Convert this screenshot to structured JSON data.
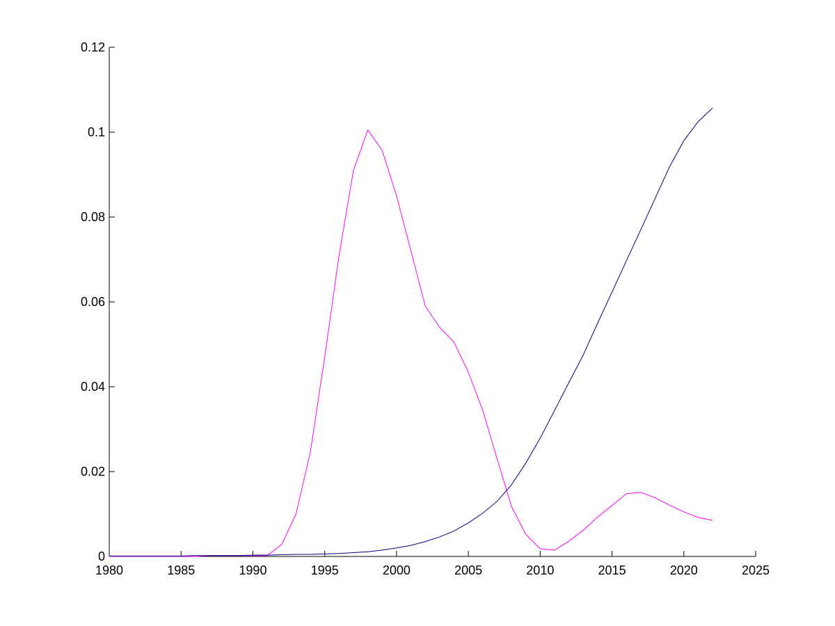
{
  "chart_data": {
    "type": "line",
    "x": [
      1980,
      1981,
      1982,
      1983,
      1984,
      1985,
      1986,
      1987,
      1988,
      1989,
      1990,
      1991,
      1992,
      1993,
      1994,
      1995,
      1996,
      1997,
      1998,
      1999,
      2000,
      2001,
      2002,
      2003,
      2004,
      2005,
      2006,
      2007,
      2008,
      2009,
      2010,
      2011,
      2012,
      2013,
      2014,
      2015,
      2016,
      2017,
      2018,
      2019,
      2020,
      2021,
      2022
    ],
    "series": [
      {
        "color": "#ff00ff",
        "values": [
          0,
          0,
          0,
          0,
          0,
          0,
          0,
          0.0002,
          0.0002,
          0.0002,
          0.0002,
          0.0002,
          0.0028,
          0.01,
          0.0246,
          0.047,
          0.071,
          0.091,
          0.1005,
          0.0957,
          0.085,
          0.072,
          0.059,
          0.054,
          0.0505,
          0.0434,
          0.0344,
          0.023,
          0.0118,
          0.0052,
          0.0018,
          0.0015,
          0.0036,
          0.0062,
          0.0093,
          0.012,
          0.0148,
          0.0151,
          0.0138,
          0.0121,
          0.0105,
          0.0092,
          0.0085
        ]
      },
      {
        "color": "#000080",
        "values": [
          0.0001,
          0.0001,
          0.0001,
          0.0001,
          0.0001,
          0.0001,
          0.0002,
          0.0002,
          0.0002,
          0.0002,
          0.0003,
          0.0003,
          0.0004,
          0.0005,
          0.0005,
          0.0006,
          0.0007,
          0.0009,
          0.0011,
          0.0015,
          0.002,
          0.0026,
          0.0035,
          0.0046,
          0.006,
          0.0079,
          0.0102,
          0.013,
          0.0169,
          0.022,
          0.0279,
          0.0344,
          0.041,
          0.0475,
          0.055,
          0.0623,
          0.0697,
          0.077,
          0.0844,
          0.0918,
          0.098,
          0.1025,
          0.1057
        ]
      }
    ],
    "xlim": [
      1980,
      2025
    ],
    "xticks": [
      1980,
      1985,
      1990,
      1995,
      2000,
      2005,
      2010,
      2015,
      2020,
      2025
    ],
    "ylim": [
      0,
      0.12
    ],
    "yticks": [
      0,
      0.02,
      0.04,
      0.06,
      0.08,
      0.1,
      0.12
    ]
  }
}
